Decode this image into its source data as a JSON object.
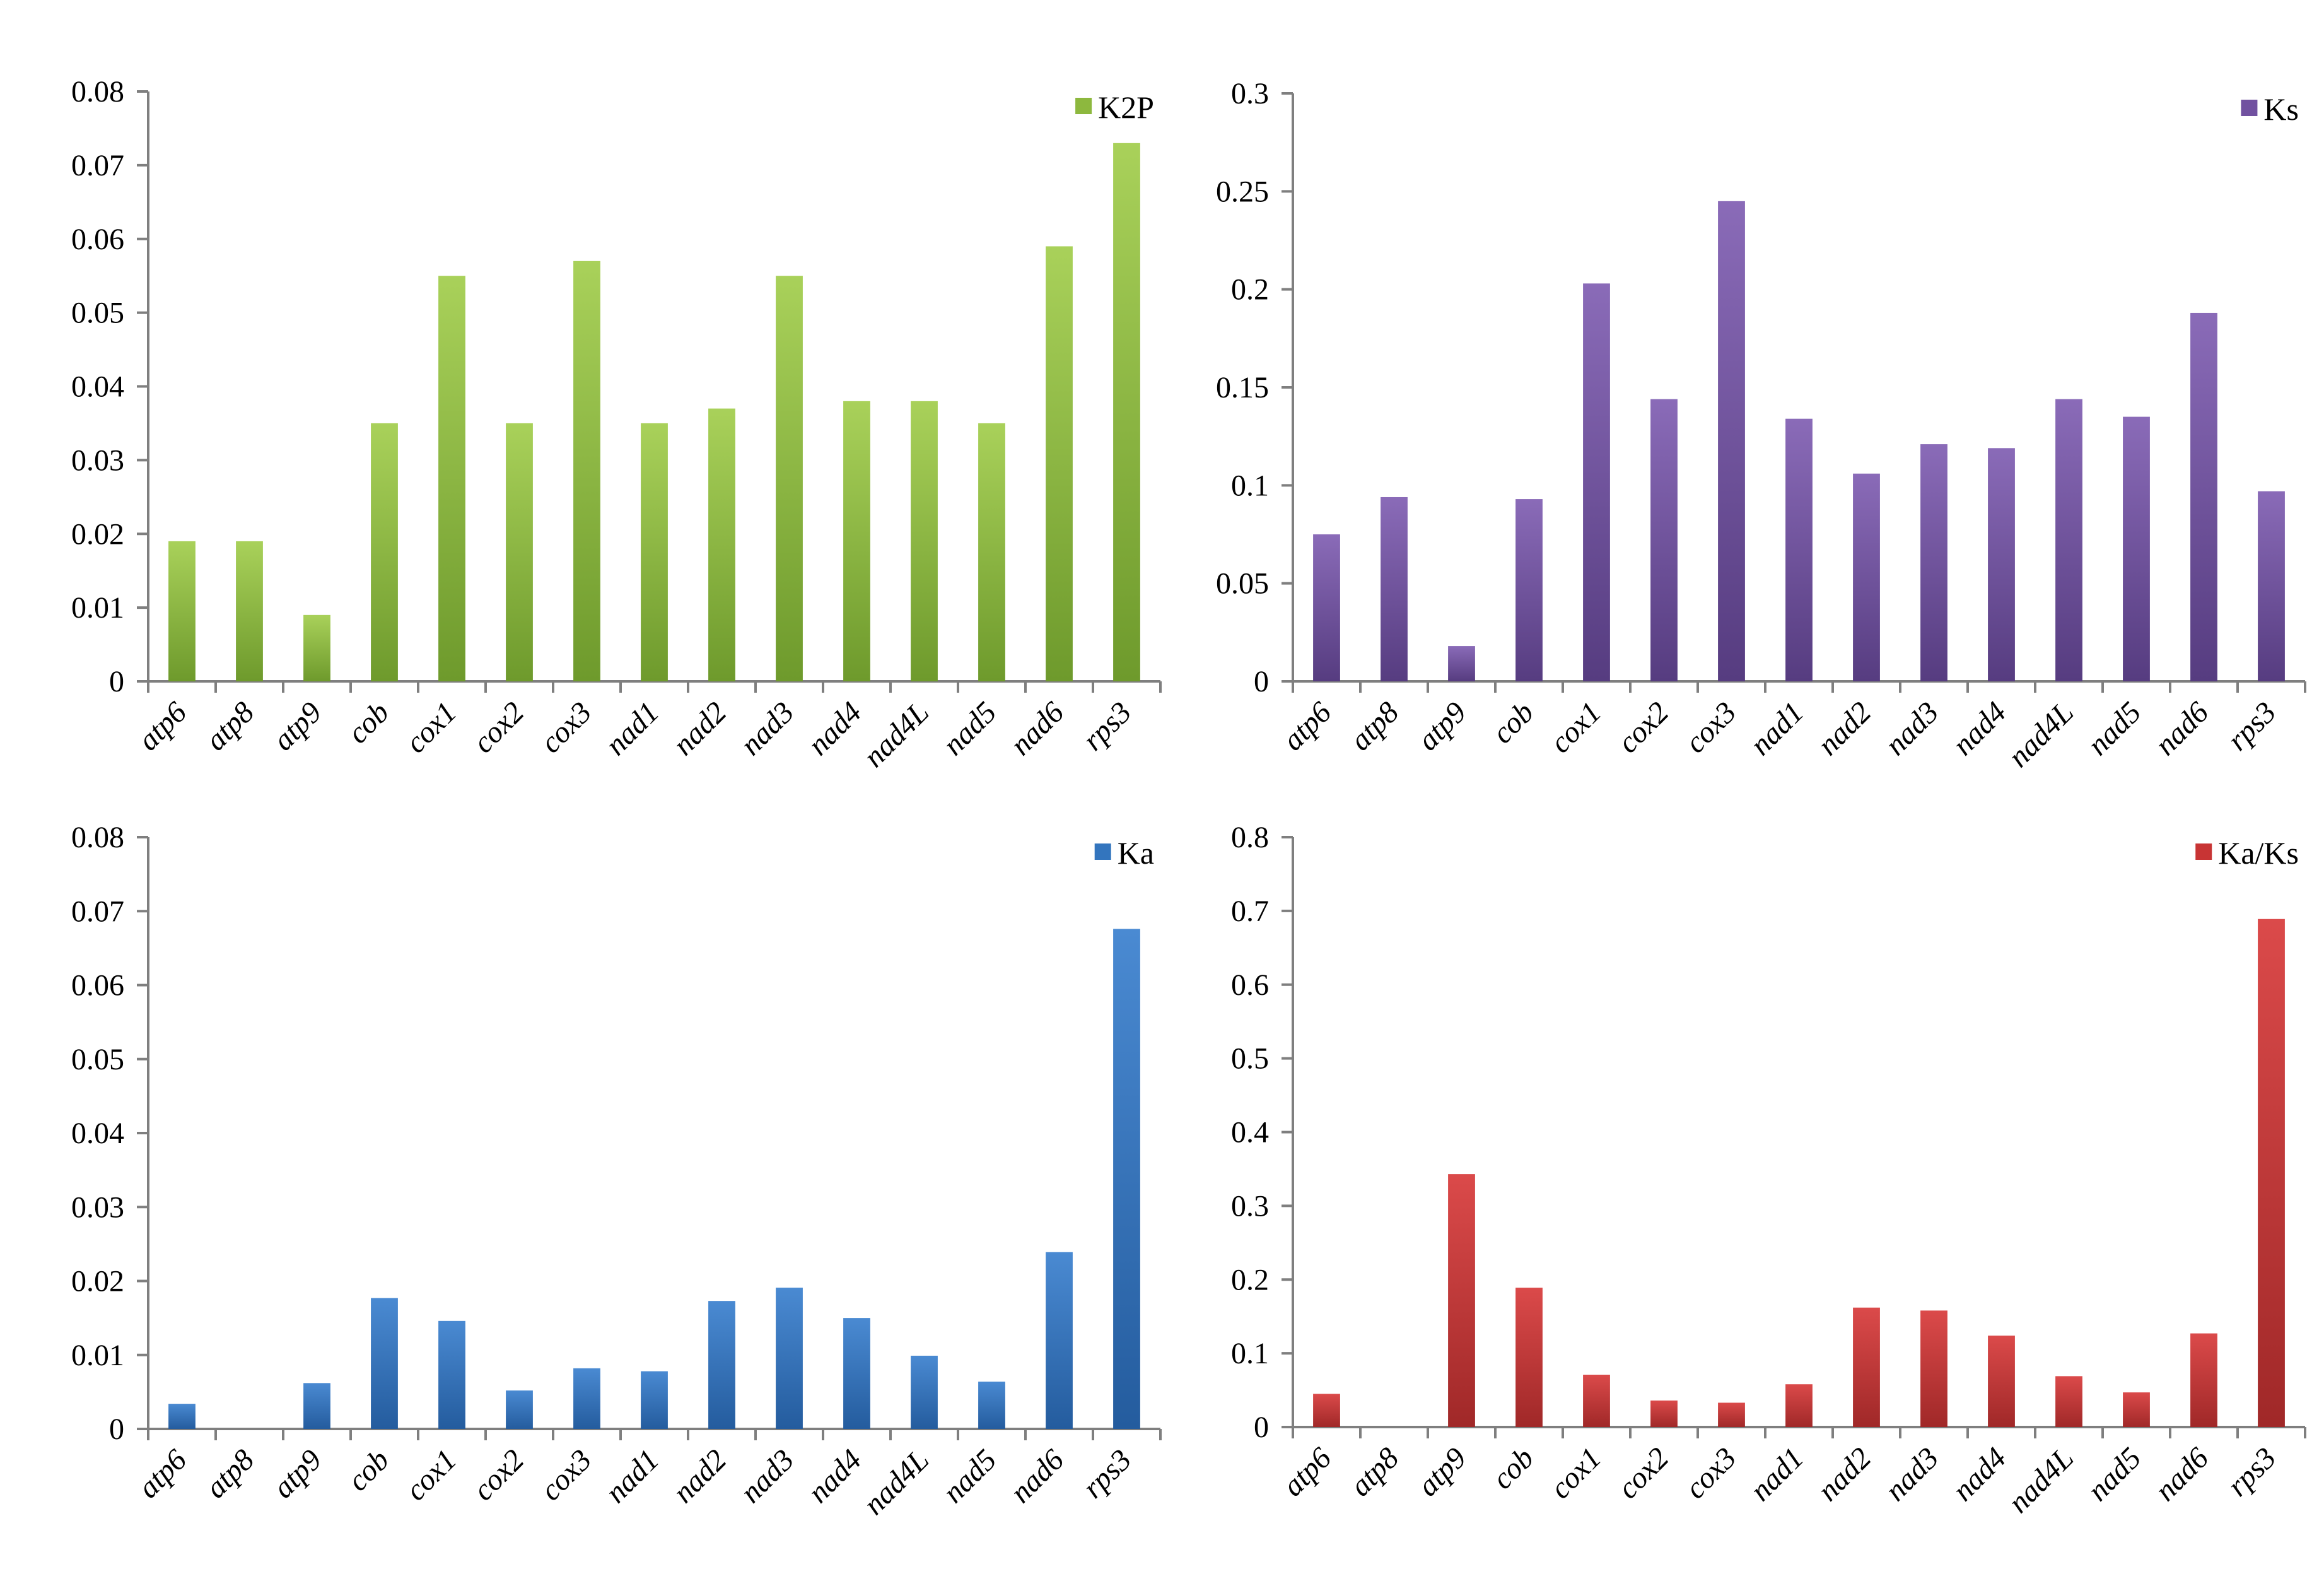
{
  "figure": {
    "description": "Four bar charts of mitochondrial gene divergence statistics"
  },
  "chart_data": [
    {
      "type": "bar",
      "panel": "top-left",
      "title": "",
      "xlabel": "",
      "ylabel": "",
      "legend": "K2P",
      "legend_position": "top-right",
      "color": "#8DB83E",
      "color_light": "#A9D15A",
      "color_dark": "#6E9A2C",
      "categories": [
        "atp6",
        "atp8",
        "atp9",
        "cob",
        "cox1",
        "cox2",
        "cox3",
        "nad1",
        "nad2",
        "nad3",
        "nad4",
        "nad4L",
        "nad5",
        "nad6",
        "rps3"
      ],
      "values": [
        0.019,
        0.019,
        0.009,
        0.035,
        0.055,
        0.035,
        0.057,
        0.035,
        0.037,
        0.055,
        0.038,
        0.038,
        0.035,
        0.059,
        0.073
      ],
      "ylim": [
        0,
        0.08
      ],
      "yticks": [
        0,
        0.01,
        0.02,
        0.03,
        0.04,
        0.05,
        0.06,
        0.07,
        0.08
      ],
      "ytick_labels": [
        "0",
        "0.01",
        "0.02",
        "0.03",
        "0.04",
        "0.05",
        "0.06",
        "0.07",
        "0.08"
      ],
      "grid": false
    },
    {
      "type": "bar",
      "panel": "top-right",
      "title": "",
      "xlabel": "",
      "ylabel": "",
      "legend": "Ks",
      "legend_position": "top-right",
      "color": "#7151A0",
      "color_light": "#8A6BB8",
      "color_dark": "#563C80",
      "categories": [
        "atp6",
        "atp8",
        "atp9",
        "cob",
        "cox1",
        "cox2",
        "cox3",
        "nad1",
        "nad2",
        "nad3",
        "nad4",
        "nad4L",
        "nad5",
        "nad6",
        "rps3"
      ],
      "values": [
        0.075,
        0.094,
        0.018,
        0.093,
        0.203,
        0.144,
        0.245,
        0.134,
        0.106,
        0.121,
        0.119,
        0.144,
        0.135,
        0.188,
        0.097
      ],
      "ylim": [
        0,
        0.3
      ],
      "yticks": [
        0,
        0.05,
        0.1,
        0.15,
        0.2,
        0.25,
        0.3
      ],
      "ytick_labels": [
        "0",
        "0.05",
        "0.1",
        "0.15",
        "0.2",
        "0.25",
        "0.3"
      ],
      "grid": false
    },
    {
      "type": "bar",
      "panel": "bottom-left",
      "title": "",
      "xlabel": "",
      "ylabel": "",
      "legend": "Ka",
      "legend_position": "top-right",
      "color": "#3375BE",
      "color_light": "#4A8AD2",
      "color_dark": "#245C9E",
      "categories": [
        "atp6",
        "atp8",
        "atp9",
        "cob",
        "cox1",
        "cox2",
        "cox3",
        "nad1",
        "nad2",
        "nad3",
        "nad4",
        "nad4L",
        "nad5",
        "nad6",
        "rps3"
      ],
      "values": [
        0.0034,
        0,
        0.0062,
        0.0177,
        0.0146,
        0.0052,
        0.0082,
        0.0078,
        0.0173,
        0.0191,
        0.015,
        0.0099,
        0.0064,
        0.0239,
        0.0676
      ],
      "ylim": [
        0,
        0.08
      ],
      "yticks": [
        0,
        0.01,
        0.02,
        0.03,
        0.04,
        0.05,
        0.06,
        0.07,
        0.08
      ],
      "ytick_labels": [
        "0",
        "0.01",
        "0.02",
        "0.03",
        "0.04",
        "0.05",
        "0.06",
        "0.07",
        "0.08"
      ],
      "grid": false
    },
    {
      "type": "bar",
      "panel": "bottom-right",
      "title": "",
      "xlabel": "",
      "ylabel": "",
      "legend": "Ka/Ks",
      "legend_position": "top-right",
      "color": "#C83434",
      "color_light": "#DB4A4A",
      "color_dark": "#A02828",
      "categories": [
        "atp6",
        "atp8",
        "atp9",
        "cob",
        "cox1",
        "cox2",
        "cox3",
        "nad1",
        "nad2",
        "nad3",
        "nad4",
        "nad4L",
        "nad5",
        "nad6",
        "rps3"
      ],
      "values": [
        0.045,
        0,
        0.343,
        0.189,
        0.071,
        0.036,
        0.033,
        0.058,
        0.162,
        0.158,
        0.124,
        0.069,
        0.047,
        0.127,
        0.689
      ],
      "ylim": [
        0,
        0.8
      ],
      "yticks": [
        0,
        0.1,
        0.2,
        0.3,
        0.4,
        0.5,
        0.6,
        0.7,
        0.8
      ],
      "ytick_labels": [
        "0",
        "0.1",
        "0.2",
        "0.3",
        "0.4",
        "0.5",
        "0.6",
        "0.7",
        "0.8"
      ],
      "grid": false
    }
  ]
}
